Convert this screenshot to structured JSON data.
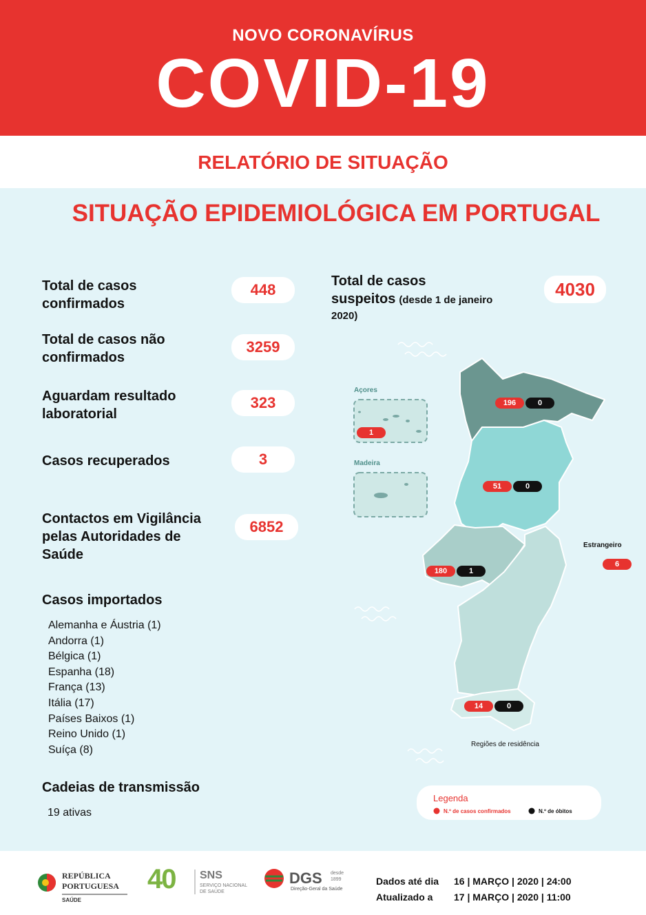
{
  "header": {
    "kicker": "NOVO CORONAVÍRUS",
    "title": "COVID-19"
  },
  "report_title": "RELATÓRIO DE SITUAÇÃO",
  "section_title": "SITUAÇÃO EPIDEMIOLÓGICA EM PORTUGAL",
  "stats": [
    {
      "label_lines": [
        "Total de casos",
        "confirmados"
      ],
      "value": 448
    },
    {
      "label_lines": [
        "Total de casos não",
        "confirmados"
      ],
      "value": 3259
    },
    {
      "label_lines": [
        "Aguardam resultado",
        "laboratorial"
      ],
      "value": 323
    },
    {
      "label_lines": [
        "Casos recuperados"
      ],
      "value": 3
    },
    {
      "label_lines": [
        "Contactos em Vigilância",
        "pelas Autoridades de",
        "Saúde"
      ],
      "value": 6852
    }
  ],
  "suspected": {
    "label_lines": [
      "Total de casos",
      "suspeitos"
    ],
    "note_lines": [
      "(desde 1 de janeiro",
      "2020)"
    ],
    "value": 4030
  },
  "imported": {
    "title": "Casos importados",
    "items": [
      "Alemanha e Áustria (1)",
      "Andorra (1)",
      "Bélgica (1)",
      "Espanha (18)",
      "França (13)",
      "Itália (17)",
      "Países Baixos (1)",
      "Reino Unido (1)",
      "Suíça (8)"
    ]
  },
  "chains": {
    "title": "Cadeias de transmissão",
    "text": "19 ativas"
  },
  "map": {
    "azores": {
      "label": "Açores",
      "cases": 1
    },
    "madeira": {
      "label": "Madeira"
    },
    "regions": [
      {
        "cases": 196,
        "deaths": 0
      },
      {
        "cases": 51,
        "deaths": 0
      },
      {
        "cases": 180,
        "deaths": 1
      },
      {
        "cases": 14,
        "deaths": 0
      }
    ],
    "foreign": {
      "label": "Estrangeiro",
      "cases": 6
    },
    "caption": "Regiões de residência"
  },
  "legend": {
    "title": "Legenda",
    "cases": "N.º de casos confirmados",
    "deaths": "N.º de óbitos"
  },
  "footer": {
    "republica": [
      "REPÚBLICA",
      "PORTUGUESA"
    ],
    "republica_sub": "SAÚDE",
    "sns": {
      "number": "40",
      "name": "SNS",
      "sub": [
        "SERVIÇO NACIONAL",
        "DE SAÚDE"
      ]
    },
    "dgs": {
      "name": "DGS",
      "since": [
        "desde",
        "1899"
      ],
      "sub": "Direção-Geral da Saúde"
    },
    "dates": [
      {
        "label": "Dados até dia",
        "value": "16 | MARÇO | 2020 | 24:00"
      },
      {
        "label": "Atualizado a",
        "value": "17 | MARÇO | 2020 | 11:00"
      }
    ]
  }
}
